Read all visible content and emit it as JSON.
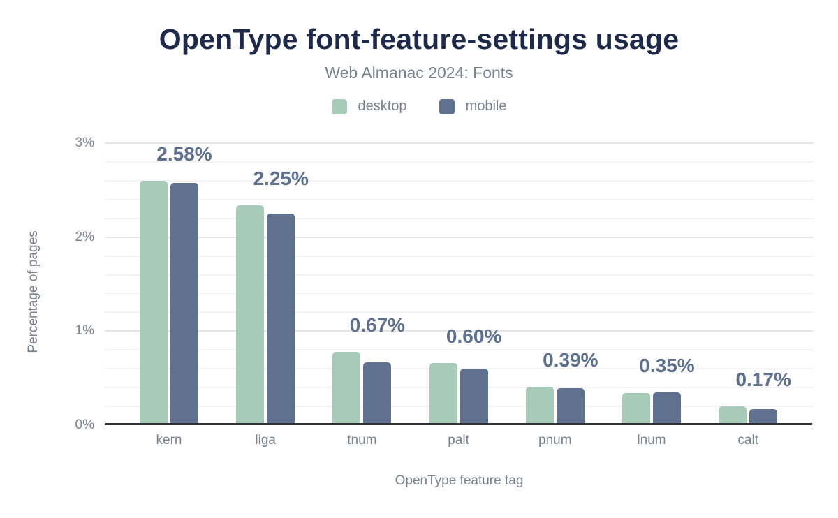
{
  "header": {
    "title": "OpenType font-feature-settings usage",
    "subtitle": "Web Almanac 2024: Fonts"
  },
  "chart_data": {
    "type": "bar",
    "title": "OpenType font-feature-settings usage",
    "subtitle": "Web Almanac 2024: Fonts",
    "categories": [
      "kern",
      "liga",
      "tnum",
      "palt",
      "pnum",
      "lnum",
      "calt"
    ],
    "series": [
      {
        "name": "desktop",
        "color": "#a8cab8",
        "values": [
          2.6,
          2.34,
          0.78,
          0.66,
          0.41,
          0.34,
          0.2
        ]
      },
      {
        "name": "mobile",
        "color": "#5f718f",
        "values": [
          2.58,
          2.25,
          0.67,
          0.6,
          0.39,
          0.35,
          0.17
        ]
      }
    ],
    "value_labels": [
      "2.58%",
      "2.25%",
      "0.67%",
      "0.60%",
      "0.39%",
      "0.35%",
      "0.17%"
    ],
    "xlabel": "OpenType feature tag",
    "ylabel": "Percentage of pages",
    "y_ticks": [
      {
        "value": 0,
        "label": "0%"
      },
      {
        "value": 1,
        "label": "1%"
      },
      {
        "value": 2,
        "label": "2%"
      },
      {
        "value": 3,
        "label": "3%"
      }
    ],
    "ylim": [
      0,
      3
    ],
    "grid": {
      "orientation": "horizontal",
      "minor_step": 0.2,
      "major_step": 1
    },
    "legend_position": "top",
    "colors": {
      "title": "#1e2a4b",
      "muted_text": "#7a8190",
      "value_label": "#5d7090",
      "axis_line": "#2e3136",
      "gridline_major": "#e6e6e6",
      "gridline_minor": "#f3f3f3"
    }
  }
}
